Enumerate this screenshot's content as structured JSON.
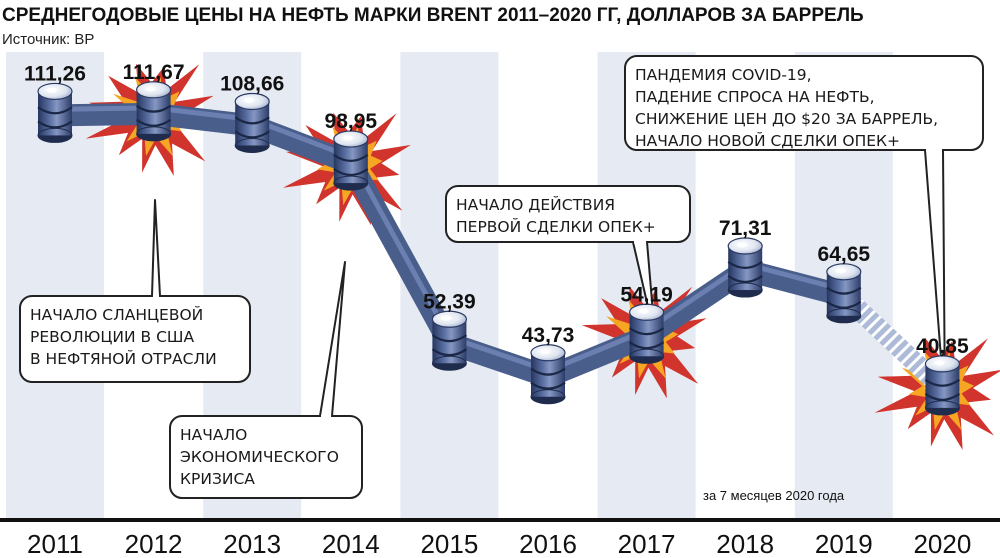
{
  "title": "СРЕДНЕГОДОВЫЕ ЦЕНЫ НА НЕФТЬ МАРКИ BRENT 2011–2020 ГГ, ДОЛЛАРОВ ЗА БАРРЕЛЬ",
  "source": "Источник: BP",
  "chart_data": {
    "type": "line",
    "categories": [
      "2011",
      "2012",
      "2013",
      "2014",
      "2015",
      "2016",
      "2017",
      "2018",
      "2019",
      "2020"
    ],
    "values": [
      111.26,
      111.67,
      108.66,
      98.95,
      52.39,
      43.73,
      54.19,
      71.31,
      64.65,
      40.85
    ],
    "value_labels": [
      "111,26",
      "111,67",
      "108,66",
      "98,95",
      "52,39",
      "43,73",
      "54,19",
      "71,31",
      "64,65",
      "40,85"
    ],
    "partial_segment": "2019-2020",
    "partial_note": "за 7 месяцев 2020 года",
    "highlighted_years": [
      "2012",
      "2014",
      "2017",
      "2020"
    ],
    "grid": "alternating vertical column bands",
    "annotations": [
      {
        "year": "2012",
        "lines": [
          "НАЧАЛО СЛАНЦЕВОЙ",
          "РЕВОЛЮЦИИ В США",
          "В НЕФТЯНОЙ ОТРАСЛИ"
        ]
      },
      {
        "year": "2014",
        "lines": [
          "НАЧАЛО",
          "ЭКОНОМИЧЕСКОГО",
          "КРИЗИСА"
        ]
      },
      {
        "year": "2017",
        "lines": [
          "НАЧАЛО ДЕЙСТВИЯ",
          "ПЕРВОЙ СДЕЛКИ ОПЕК+"
        ]
      },
      {
        "year": "2020",
        "lines": [
          "ПАНДЕМИЯ COVID-19,",
          "ПАДЕНИЕ СПРОСА НА НЕФТЬ,",
          "СНИЖЕНИЕ ЦЕН ДО $20 ЗА БАРРЕЛЬ,",
          "НАЧАЛО НОВОЙ СДЕЛКИ ОПЕК+"
        ]
      }
    ],
    "colors": {
      "line": "#4a5e8c",
      "barrel": "#3b4f82",
      "burst_outer": "#d0342c",
      "burst_inner": "#f6a623",
      "band": "#e6eaf2"
    }
  }
}
